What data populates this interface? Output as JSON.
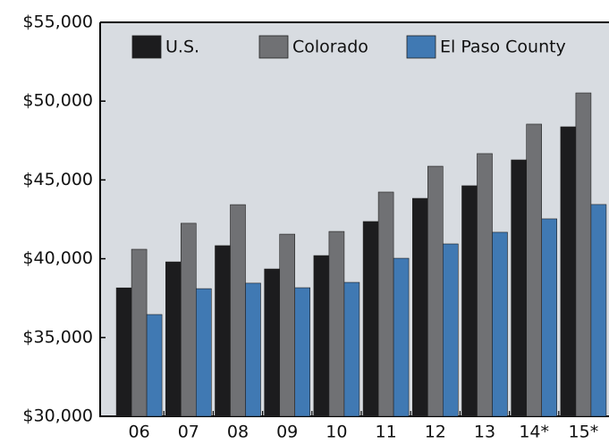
{
  "chart_data": {
    "type": "bar",
    "categories": [
      "06",
      "07",
      "08",
      "09",
      "10",
      "11",
      "12",
      "13",
      "14*",
      "15*"
    ],
    "series": [
      {
        "name": "U.S.",
        "color": "#1c1c1e",
        "values": [
          38150,
          39800,
          40830,
          39350,
          40200,
          42360,
          43830,
          44630,
          46270,
          48370
        ]
      },
      {
        "name": "Colorado",
        "color": "#707174",
        "values": [
          40600,
          42250,
          43430,
          41560,
          41730,
          44230,
          45870,
          46670,
          48540,
          50520
        ]
      },
      {
        "name": "El Paso County",
        "color": "#4079b3",
        "values": [
          36460,
          38100,
          38450,
          38160,
          38500,
          40030,
          40940,
          41680,
          42530,
          43440
        ]
      }
    ],
    "ylim": [
      30000,
      55000
    ],
    "yticks": [
      {
        "value": 30000,
        "label": "$30,000"
      },
      {
        "value": 35000,
        "label": "$35,000"
      },
      {
        "value": 40000,
        "label": "$40,000"
      },
      {
        "value": 45000,
        "label": "$45,000"
      },
      {
        "value": 50000,
        "label": "$50,000"
      },
      {
        "value": 55000,
        "label": "$55,000"
      }
    ],
    "legend": "top"
  }
}
